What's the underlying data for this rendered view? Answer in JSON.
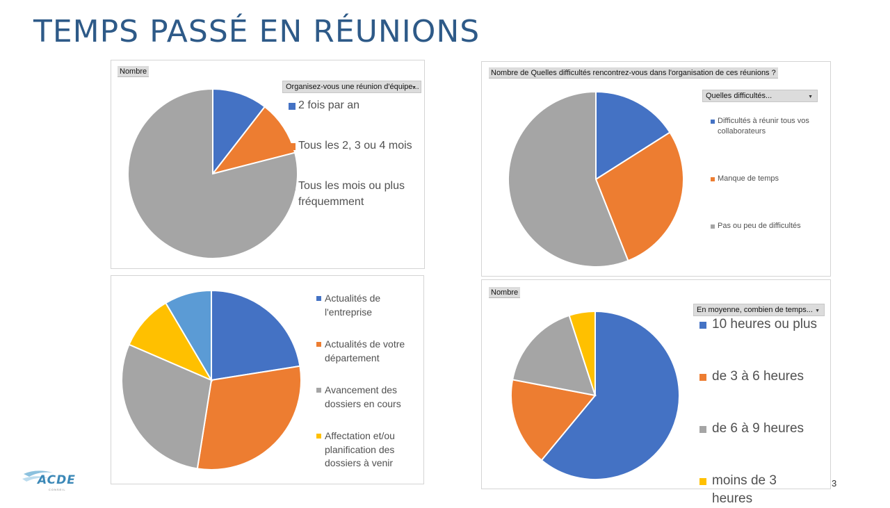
{
  "slide": {
    "title": "TEMPS PASSÉ EN RÉUNIONS",
    "page_number": "3",
    "logo": {
      "name": "ACDE",
      "sub": "CONSEIL"
    }
  },
  "charts": {
    "c1": {
      "field_button": "Nombre",
      "filter_button": "Organisez-vous une réunion d'équipe...",
      "filter_icon": "dropdown-arrow"
    },
    "c2": {
      "field_button": "Nombre de Quelles difficultés rencontrez-vous dans l'organisation de ces réunions ?",
      "filter_button": "Quelles difficultés...",
      "filter_icon": "dropdown-arrow"
    },
    "c3": {},
    "c4": {
      "field_button": "Nombre",
      "filter_button": "En moyenne, combien de temps...",
      "filter_icon": "dropdown-arrow"
    }
  },
  "chart_data": [
    {
      "type": "pie",
      "title": "",
      "categories": [
        "2 fois par an",
        "Tous les 2, 3 ou 4 mois",
        "Tous les mois ou plus fréquemment"
      ],
      "values": [
        10.5,
        10.5,
        79
      ],
      "colors": [
        "#4472c4",
        "#ed7d31",
        "#a5a5a5"
      ],
      "legend_lines": [
        [
          "2 fois par an"
        ],
        [
          "Tous les 2, 3 ou 4 mois"
        ],
        [
          "Tous les mois ou plus",
          "fréquemment"
        ]
      ],
      "legend": "right"
    },
    {
      "type": "pie",
      "title": "",
      "categories": [
        "Difficultés à réunir tous vos collaborateurs",
        "Manque de temps",
        "Pas ou peu de difficultés"
      ],
      "values": [
        16,
        28,
        56
      ],
      "colors": [
        "#4472c4",
        "#ed7d31",
        "#a5a5a5"
      ],
      "legend_lines": [
        [
          "Difficultés à réunir tous vos",
          "collaborateurs"
        ],
        [
          "Manque de temps"
        ],
        [
          "Pas ou peu de difficultés"
        ]
      ],
      "legend": "right"
    },
    {
      "type": "pie",
      "title": "",
      "categories": [
        "Actualités de l'entreprise",
        "Actualités de votre département",
        "Avancement des dossiers en cours",
        "Affectation et/ou planification des dossiers à venir",
        ""
      ],
      "values": [
        22.5,
        30,
        29,
        10,
        8.5
      ],
      "colors": [
        "#4472c4",
        "#ed7d31",
        "#a5a5a5",
        "#ffc000",
        "#5b9bd5"
      ],
      "legend_lines": [
        [
          "Actualités de",
          "l'entreprise"
        ],
        [
          "Actualités de votre",
          "département"
        ],
        [
          "Avancement des",
          "dossiers en cours"
        ],
        [
          "Affectation et/ou",
          "planification des",
          "dossiers à venir"
        ]
      ],
      "legend": "right"
    },
    {
      "type": "pie",
      "title": "",
      "categories": [
        "10 heures ou plus",
        "de 3 à 6 heures",
        "de 6 à 9 heures",
        "moins de 3 heures"
      ],
      "values": [
        61,
        17,
        17,
        5
      ],
      "colors": [
        "#4472c4",
        "#ed7d31",
        "#a5a5a5",
        "#ffc000"
      ],
      "legend_lines": [
        [
          "10 heures ou plus"
        ],
        [
          "de 3 à 6 heures"
        ],
        [
          "de 6 à 9 heures"
        ],
        [
          "moins de 3",
          "heures"
        ]
      ],
      "legend": "right"
    }
  ]
}
